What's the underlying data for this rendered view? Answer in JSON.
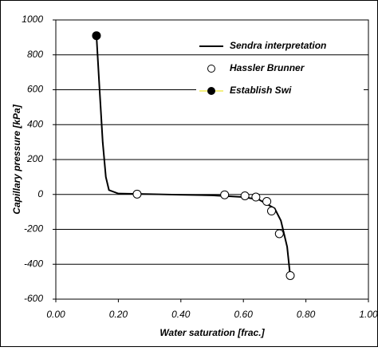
{
  "chart_data": {
    "type": "line",
    "xlabel": "Water saturation [frac.]",
    "ylabel": "Capillary pressure [kPa]",
    "xlim": [
      0,
      1
    ],
    "ylim": [
      -600,
      1000
    ],
    "xticks": [
      {
        "value": 0,
        "label": "0.00"
      },
      {
        "value": 0.2,
        "label": "0.20"
      },
      {
        "value": 0.4,
        "label": "0.40"
      },
      {
        "value": 0.6,
        "label": "0.60"
      },
      {
        "value": 0.8,
        "label": "0.80"
      },
      {
        "value": 1,
        "label": "1.00"
      }
    ],
    "yticks": [
      -600,
      -400,
      -200,
      0,
      200,
      400,
      600,
      800,
      1000
    ],
    "grid": true,
    "legend": "upper right",
    "series": [
      {
        "name": "Sendra interpretation",
        "type": "line",
        "color": "#000000",
        "x": [
          0.13,
          0.14,
          0.15,
          0.16,
          0.17,
          0.2,
          0.3,
          0.4,
          0.5,
          0.6,
          0.65,
          0.7,
          0.72,
          0.74,
          0.75
        ],
        "values": [
          910,
          600,
          300,
          100,
          25,
          5,
          2,
          -2,
          -5,
          -15,
          -30,
          -80,
          -150,
          -300,
          -470
        ]
      },
      {
        "name": "Hassler Brunner",
        "type": "scatter",
        "color": "#ffffff",
        "x": [
          0.26,
          0.54,
          0.605,
          0.64,
          0.675,
          0.69,
          0.715,
          0.75
        ],
        "values": [
          2,
          -2,
          -8,
          -15,
          -40,
          -95,
          -225,
          -465
        ]
      },
      {
        "name": "Establish Swi",
        "type": "scatter",
        "color": "#000000",
        "x": [
          0.13
        ],
        "values": [
          910
        ]
      }
    ]
  }
}
